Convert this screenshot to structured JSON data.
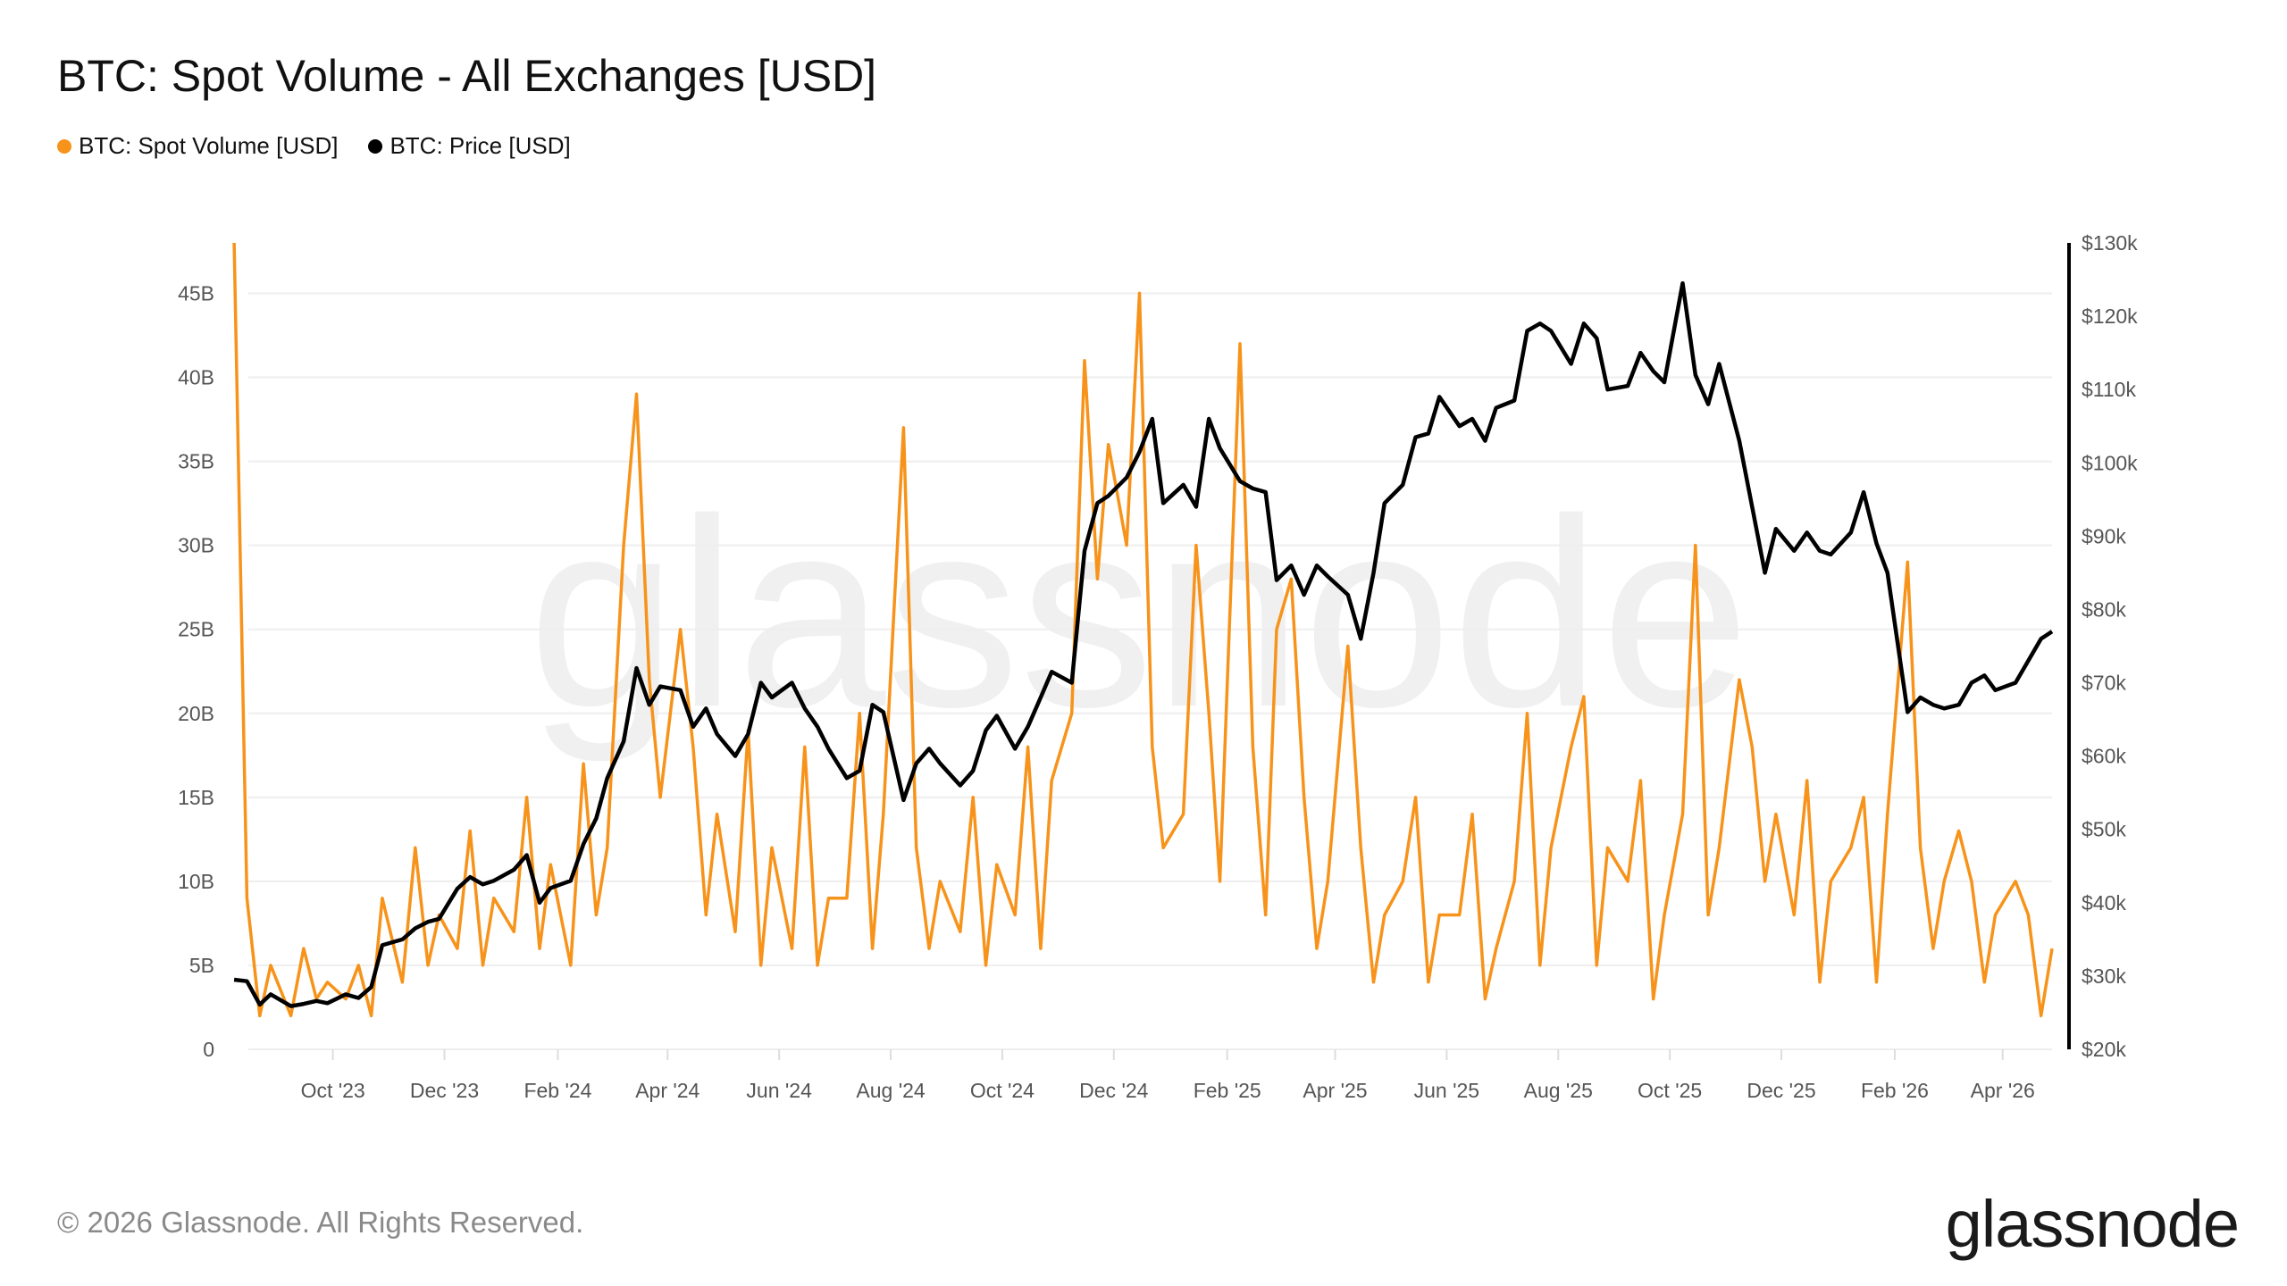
{
  "title": "BTC: Spot Volume - All Exchanges [USD]",
  "legend": [
    {
      "label": "BTC: Spot Volume [USD]",
      "color": "#f7931a"
    },
    {
      "label": "BTC: Price [USD]",
      "color": "#000000"
    }
  ],
  "watermark": "glassnode",
  "footer": "© 2026 Glassnode. All Rights Reserved.",
  "logo": "glassnode",
  "chart_data": {
    "type": "line",
    "title": "BTC: Spot Volume - All Exchanges [USD]",
    "grid": true,
    "legend_position": "top-left",
    "x_range": [
      "2023-08-06",
      "2026-04-28"
    ],
    "x_ticks": [
      {
        "date": "2023-10-01",
        "label": "Oct '23"
      },
      {
        "date": "2023-12-01",
        "label": "Dec '23"
      },
      {
        "date": "2024-02-01",
        "label": "Feb '24"
      },
      {
        "date": "2024-04-01",
        "label": "Apr '24"
      },
      {
        "date": "2024-06-01",
        "label": "Jun '24"
      },
      {
        "date": "2024-08-01",
        "label": "Aug '24"
      },
      {
        "date": "2024-10-01",
        "label": "Oct '24"
      },
      {
        "date": "2024-12-01",
        "label": "Dec '24"
      },
      {
        "date": "2025-02-01",
        "label": "Feb '25"
      },
      {
        "date": "2025-04-01",
        "label": "Apr '25"
      },
      {
        "date": "2025-06-01",
        "label": "Jun '25"
      },
      {
        "date": "2025-08-01",
        "label": "Aug '25"
      },
      {
        "date": "2025-10-01",
        "label": "Oct '25"
      },
      {
        "date": "2025-12-01",
        "label": "Dec '25"
      },
      {
        "date": "2026-02-01",
        "label": "Feb '26"
      },
      {
        "date": "2026-04-01",
        "label": "Apr '26"
      }
    ],
    "y_left": {
      "unit": "USD (billions)",
      "ylim": [
        0,
        48
      ],
      "ticks": [
        {
          "v": 0,
          "label": "0"
        },
        {
          "v": 5,
          "label": "5B"
        },
        {
          "v": 10,
          "label": "10B"
        },
        {
          "v": 15,
          "label": "15B"
        },
        {
          "v": 20,
          "label": "20B"
        },
        {
          "v": 25,
          "label": "25B"
        },
        {
          "v": 30,
          "label": "30B"
        },
        {
          "v": 35,
          "label": "35B"
        },
        {
          "v": 40,
          "label": "40B"
        },
        {
          "v": 45,
          "label": "45B"
        }
      ]
    },
    "y_right": {
      "unit": "USD (thousands)",
      "ylim": [
        20,
        130
      ],
      "ticks": [
        {
          "v": 20,
          "label": "$20k"
        },
        {
          "v": 30,
          "label": "$30k"
        },
        {
          "v": 40,
          "label": "$40k"
        },
        {
          "v": 50,
          "label": "$50k"
        },
        {
          "v": 60,
          "label": "$60k"
        },
        {
          "v": 70,
          "label": "$70k"
        },
        {
          "v": 80,
          "label": "$80k"
        },
        {
          "v": 90,
          "label": "$90k"
        },
        {
          "v": 100,
          "label": "$100k"
        },
        {
          "v": 110,
          "label": "$110k"
        },
        {
          "v": 120,
          "label": "$120k"
        },
        {
          "v": 130,
          "label": "$130k"
        }
      ]
    },
    "months": [
      "2023-08",
      "2023-09",
      "2023-10",
      "2023-11",
      "2023-12",
      "2024-01",
      "2024-02",
      "2024-03",
      "2024-04",
      "2024-05",
      "2024-06",
      "2024-07",
      "2024-08",
      "2024-09",
      "2024-10",
      "2024-11",
      "2024-12",
      "2025-01",
      "2025-02",
      "2025-03",
      "2025-04",
      "2025-05",
      "2025-06",
      "2025-07",
      "2025-08",
      "2025-09",
      "2025-10",
      "2025-11",
      "2025-12",
      "2026-01",
      "2026-02",
      "2026-03",
      "2026-04"
    ],
    "days_in_month": [
      "08",
      "15",
      "22",
      "28"
    ],
    "series": [
      {
        "name": "BTC: Spot Volume [USD]",
        "axis": "left",
        "color": "#f7931a",
        "values": [
          48,
          9,
          2,
          5,
          2,
          6,
          3,
          4,
          3,
          5,
          2,
          9,
          4,
          12,
          5,
          8,
          6,
          13,
          5,
          9,
          7,
          15,
          6,
          11,
          5,
          17,
          8,
          12,
          30,
          39,
          22,
          15,
          25,
          18,
          8,
          14,
          7,
          19,
          5,
          12,
          6,
          18,
          5,
          9,
          9,
          20,
          6,
          14,
          37,
          12,
          6,
          10,
          7,
          15,
          5,
          11,
          8,
          18,
          6,
          16,
          20,
          41,
          28,
          36,
          30,
          45,
          18,
          12,
          14,
          30,
          20,
          10,
          42,
          18,
          8,
          25,
          28,
          15,
          6,
          10,
          24,
          12,
          4,
          8,
          10,
          15,
          4,
          8,
          8,
          14,
          3,
          6,
          10,
          20,
          5,
          12,
          18,
          21,
          5,
          12,
          10,
          16,
          3,
          8,
          14,
          30,
          8,
          12,
          22,
          18,
          10,
          14,
          8,
          16,
          4,
          10,
          12,
          15,
          4,
          14,
          29,
          12,
          6,
          10,
          13,
          10,
          4,
          8,
          10,
          8,
          2,
          6
        ]
      },
      {
        "name": "BTC: Price [USD]",
        "axis": "right",
        "color": "#000000",
        "values": [
          29.5,
          29.3,
          26.1,
          27.5,
          25.9,
          26.2,
          26.6,
          26.3,
          27.5,
          27.0,
          28.5,
          34.2,
          35.0,
          36.5,
          37.4,
          37.8,
          41.9,
          43.5,
          42.5,
          43.0,
          44.5,
          46.5,
          40.0,
          42.0,
          43.0,
          48.0,
          51.5,
          57.0,
          62.0,
          72.0,
          67.0,
          69.5,
          69.0,
          64.0,
          66.5,
          63.0,
          60.0,
          63.0,
          70.0,
          68.0,
          70.0,
          66.5,
          64.0,
          61.0,
          57.0,
          58.0,
          67.0,
          66.0,
          54.0,
          59.0,
          61.0,
          59.0,
          56.0,
          58.0,
          63.5,
          65.5,
          61.0,
          64.0,
          68.0,
          71.5,
          70.0,
          88.0,
          94.5,
          95.5,
          98.0,
          101.5,
          106.0,
          94.5,
          97.0,
          94.0,
          106.0,
          102.0,
          97.5,
          96.5,
          96.0,
          84.0,
          86.0,
          82.0,
          86.0,
          84.5,
          82.0,
          76.0,
          85.0,
          94.5,
          97.0,
          103.5,
          104.0,
          109.0,
          105.0,
          106.0,
          103.0,
          107.5,
          108.5,
          118.0,
          119.0,
          118.0,
          113.5,
          119.0,
          117.0,
          110.0,
          110.5,
          115.0,
          112.5,
          111.0,
          124.5,
          112.0,
          108.0,
          113.5,
          103.0,
          94.0,
          85.0,
          91.0,
          88.0,
          90.5,
          88.0,
          87.5,
          90.5,
          96.0,
          89.0,
          85.0,
          66.0,
          68.0,
          67.0,
          66.5,
          67.0,
          70.0,
          71.0,
          69.0,
          70.0,
          73.0,
          76.0,
          77.0
        ]
      }
    ]
  }
}
